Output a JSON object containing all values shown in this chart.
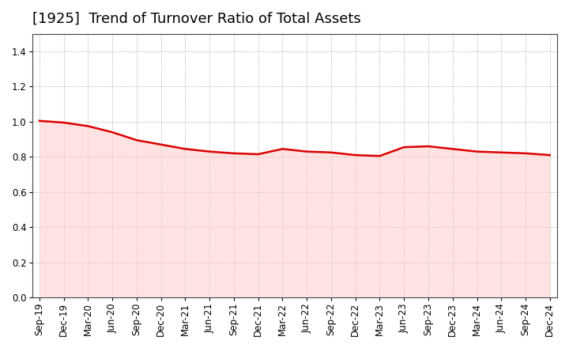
{
  "title": "[1925]  Trend of Turnover Ratio of Total Assets",
  "x_labels": [
    "Sep-19",
    "Dec-19",
    "Mar-20",
    "Jun-20",
    "Sep-20",
    "Dec-20",
    "Mar-21",
    "Jun-21",
    "Sep-21",
    "Dec-21",
    "Mar-22",
    "Jun-22",
    "Sep-22",
    "Dec-22",
    "Mar-23",
    "Jun-23",
    "Sep-23",
    "Dec-23",
    "Mar-24",
    "Jun-24",
    "Sep-24",
    "Dec-24"
  ],
  "y_values": [
    1.005,
    0.995,
    0.975,
    0.94,
    0.895,
    0.87,
    0.845,
    0.83,
    0.82,
    0.815,
    0.845,
    0.83,
    0.825,
    0.81,
    0.805,
    0.855,
    0.86,
    0.845,
    0.83,
    0.825,
    0.82,
    0.81
  ],
  "line_color": "#dd0000",
  "line_width": 1.8,
  "ylim": [
    0.0,
    1.5
  ],
  "yticks": [
    0.0,
    0.2,
    0.4,
    0.6,
    0.8,
    1.0,
    1.2,
    1.4
  ],
  "grid_color": "#999999",
  "background_color": "#ffffff",
  "title_fontsize": 13,
  "tick_fontsize": 8.5,
  "fill_color": "#ffcccc",
  "fill_alpha": 0.55
}
